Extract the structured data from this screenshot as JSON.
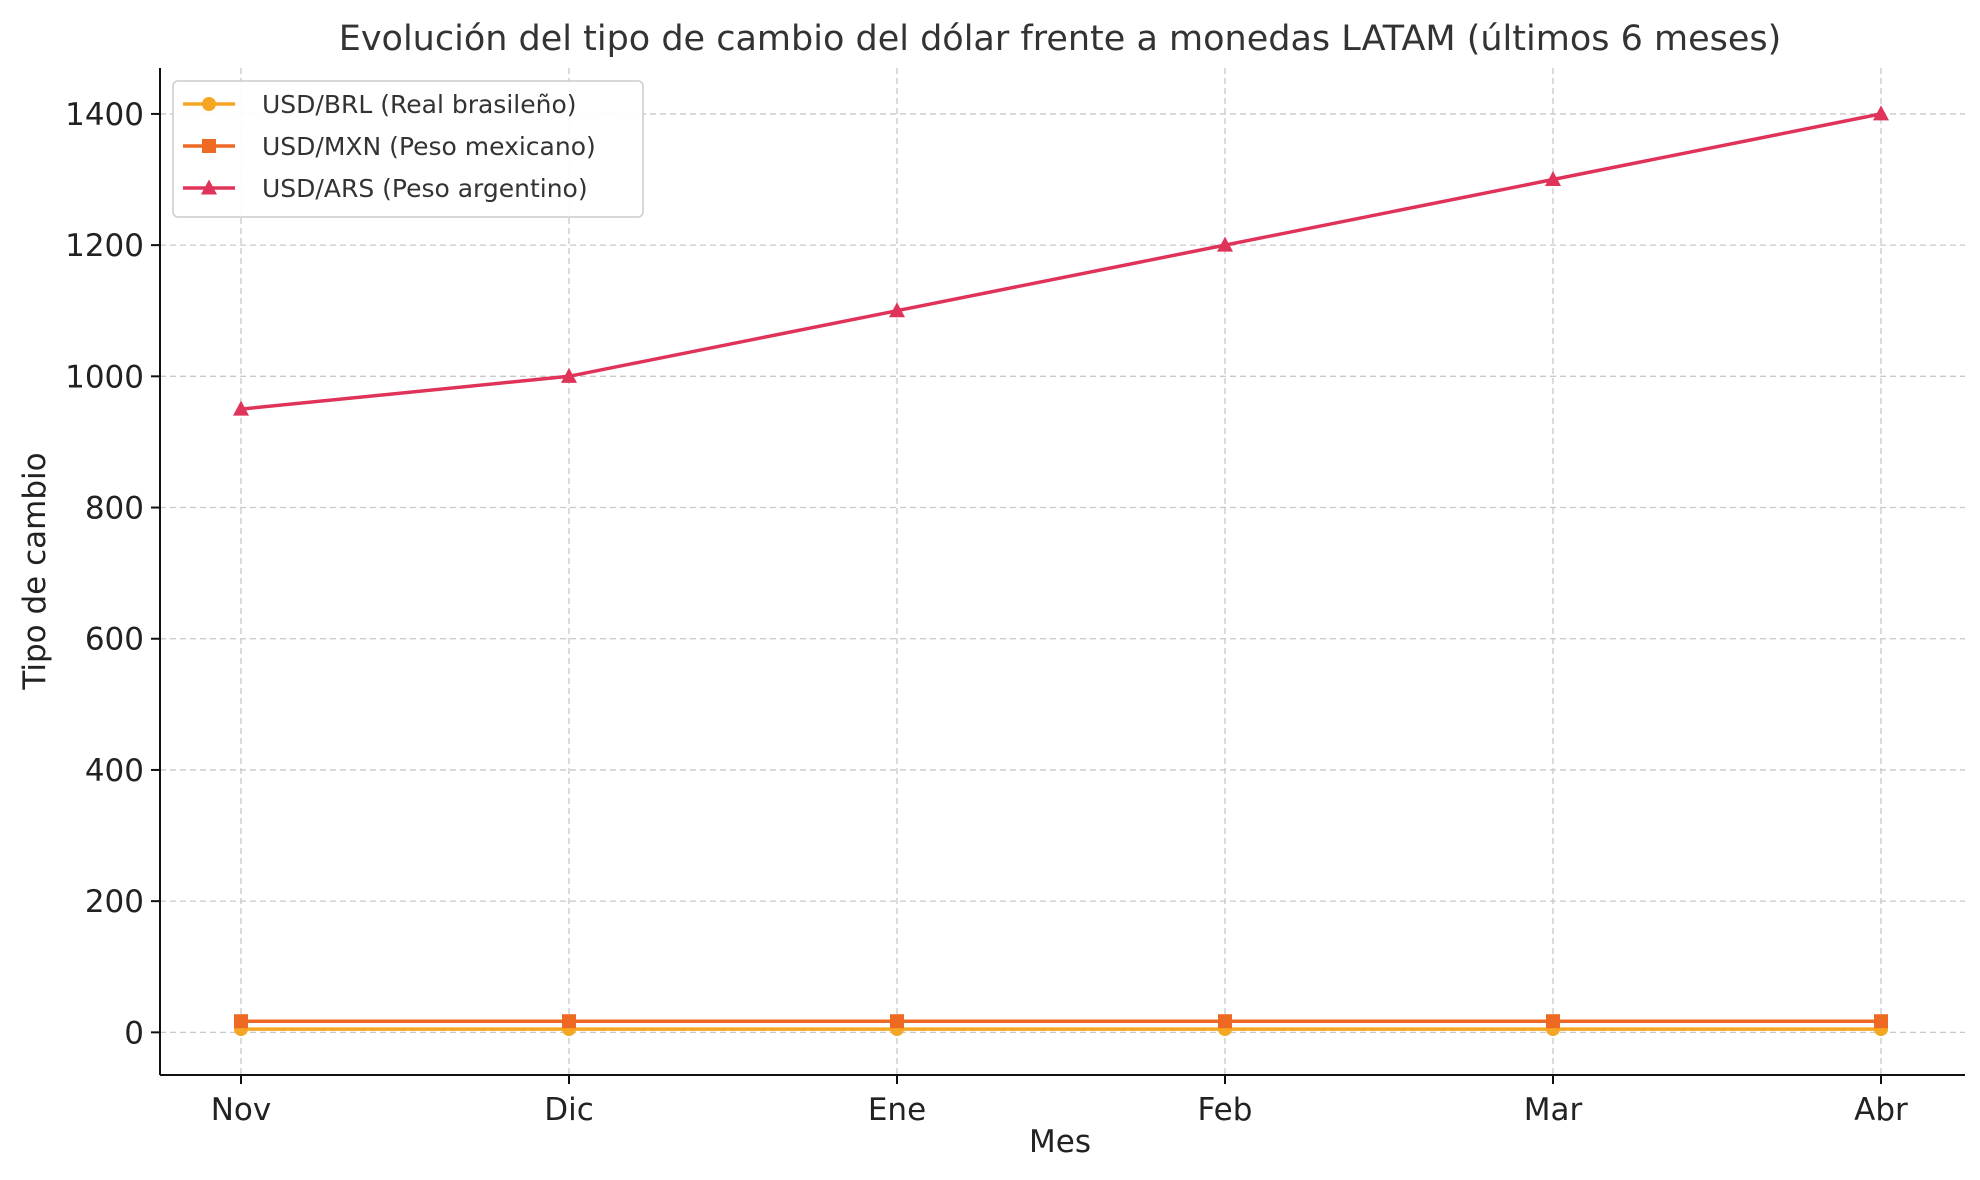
{
  "chart_data": {
    "type": "line",
    "title": "Evolución del tipo de cambio del dólar frente a monedas LATAM (últimos 6 meses)",
    "xlabel": "Mes",
    "ylabel": "Tipo de cambio",
    "categories": [
      "Nov",
      "Dic",
      "Ene",
      "Feb",
      "Mar",
      "Abr"
    ],
    "ylim": [
      -65,
      1470
    ],
    "yticks": [
      0,
      200,
      400,
      600,
      800,
      1000,
      1200,
      1400
    ],
    "grid": true,
    "legend_position": "top-left",
    "series": [
      {
        "name": "USD/BRL (Real brasileño)",
        "color": "#F5A623",
        "marker": "circle",
        "values": [
          5.0,
          5.0,
          5.0,
          5.0,
          5.0,
          5.0
        ]
      },
      {
        "name": "USD/MXN (Peso mexicano)",
        "color": "#EE6A24",
        "marker": "square",
        "values": [
          17.0,
          17.0,
          17.0,
          17.0,
          17.0,
          17.0
        ]
      },
      {
        "name": "USD/ARS (Peso argentino)",
        "color": "#E0335A",
        "marker": "triangle",
        "values": [
          950,
          1000,
          1100,
          1200,
          1300,
          1400
        ]
      }
    ]
  }
}
